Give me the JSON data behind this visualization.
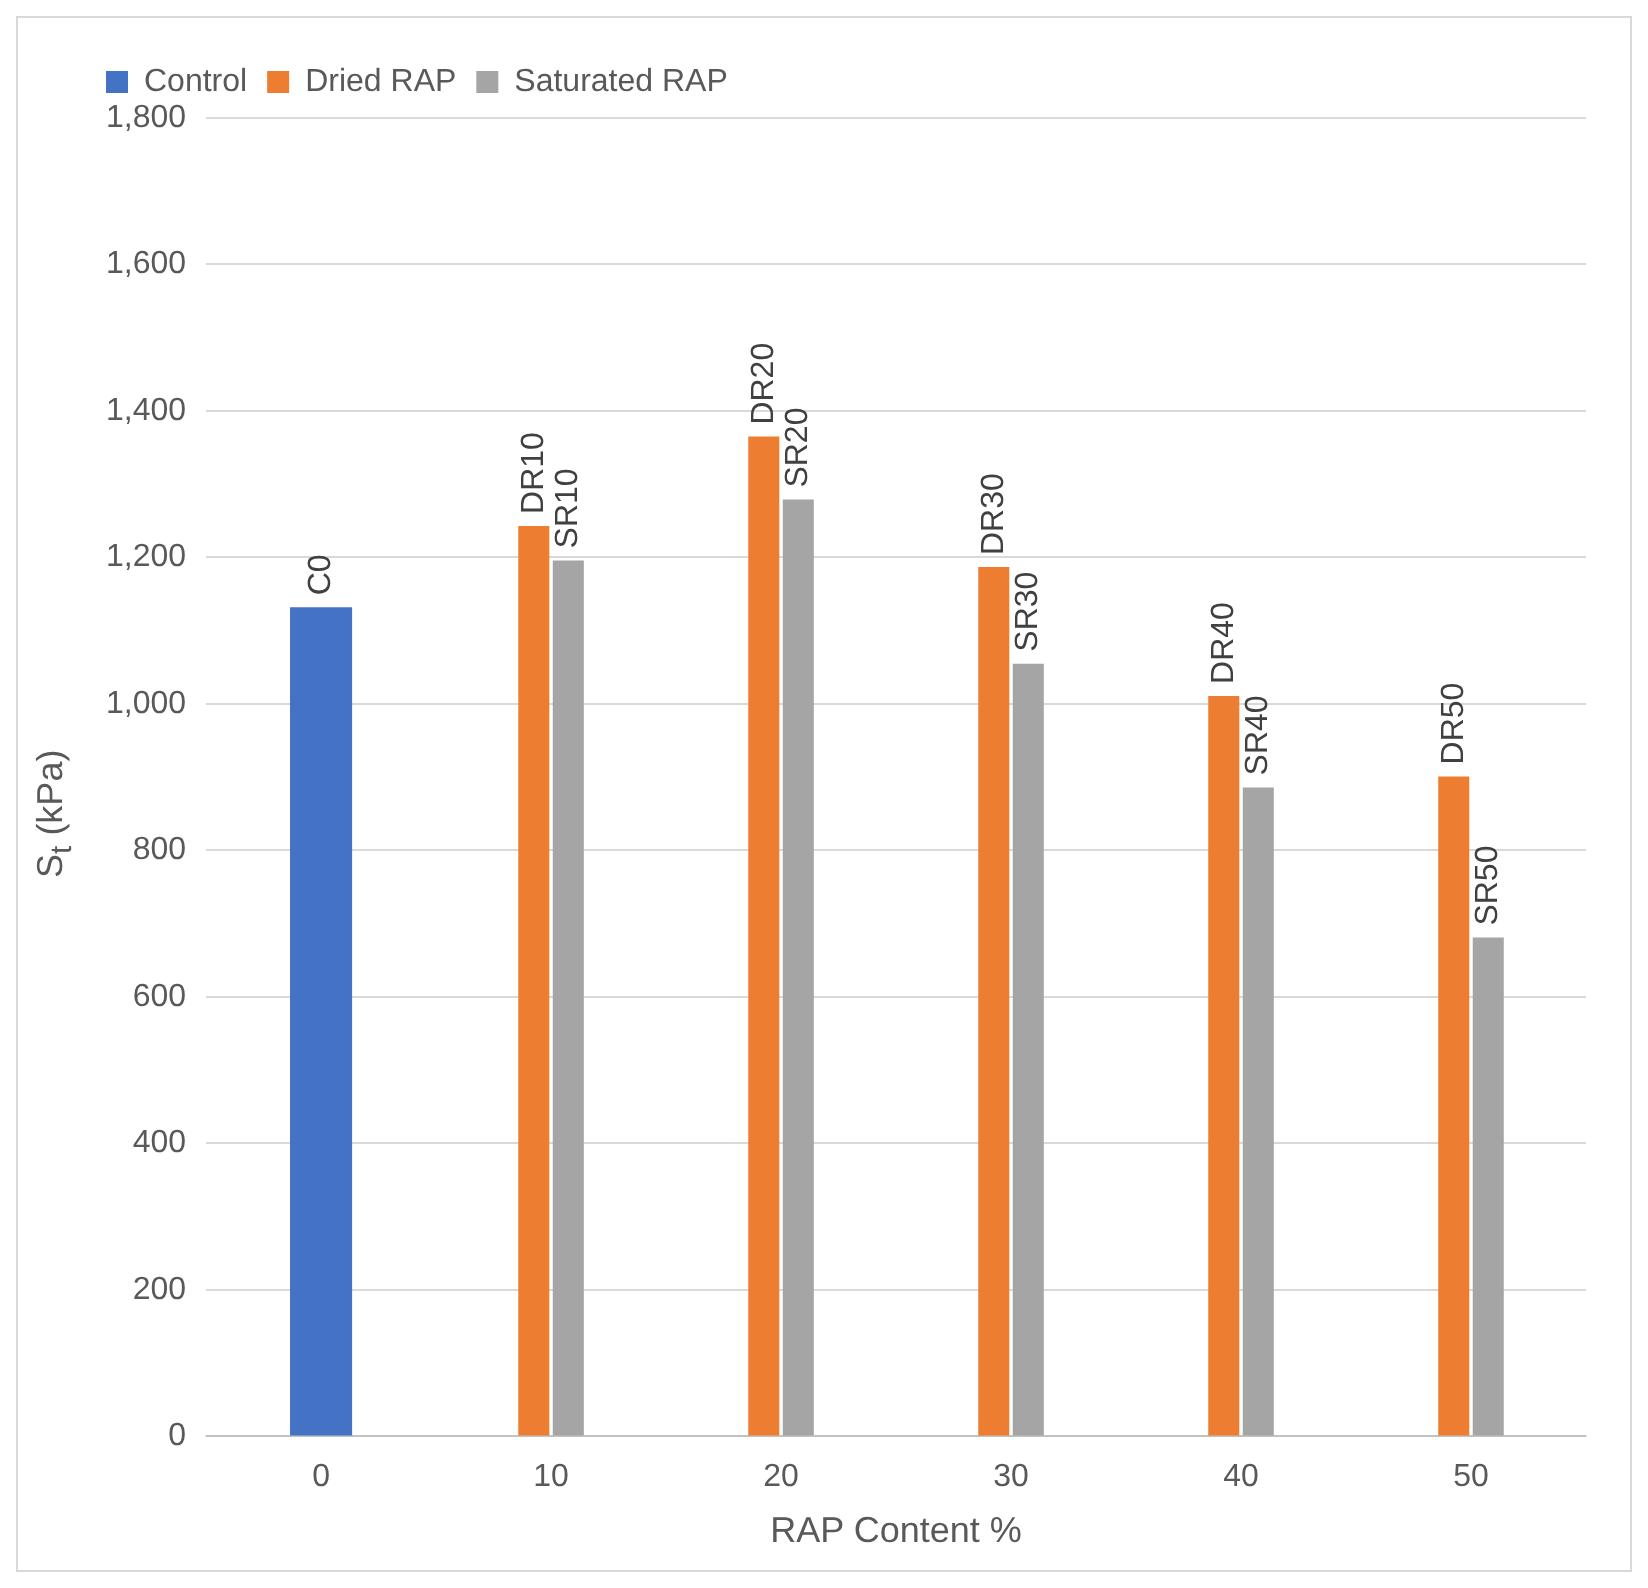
{
  "chart_data": {
    "type": "bar",
    "xlabel": "RAP Content %",
    "ylabel": "S$_{t}$ (kPa)",
    "categories": [
      "0",
      "10",
      "20",
      "30",
      "40",
      "50"
    ],
    "series": [
      {
        "name": "Control",
        "color": "#4472c4",
        "values": [
          1132,
          null,
          null,
          null,
          null,
          null
        ],
        "value_labels": [
          "C0",
          null,
          null,
          null,
          null,
          null
        ]
      },
      {
        "name": "Dried RAP",
        "color": "#ed7d31",
        "values": [
          null,
          1243,
          1365,
          1187,
          1011,
          901
        ],
        "value_labels": [
          null,
          "DR10",
          "DR20",
          "DR30",
          "DR40",
          "DR50"
        ]
      },
      {
        "name": "Saturated RAP",
        "color": "#a5a5a5",
        "values": [
          null,
          1196,
          1279,
          1055,
          886,
          681
        ],
        "value_labels": [
          null,
          "SR10",
          "SR20",
          "SR30",
          "SR40",
          "SR50"
        ]
      }
    ],
    "ylim": [
      0,
      1800
    ],
    "yticks": [
      0,
      200,
      400,
      600,
      800,
      {
        "value": 1000,
        "label": "1,000"
      },
      {
        "value": 1200,
        "label": "1,200"
      },
      {
        "value": 1400,
        "label": "1,400"
      },
      {
        "value": 1600,
        "label": "1,600"
      },
      {
        "value": 1800,
        "label": "1,800"
      }
    ],
    "grid": "y",
    "legend": "top left"
  }
}
